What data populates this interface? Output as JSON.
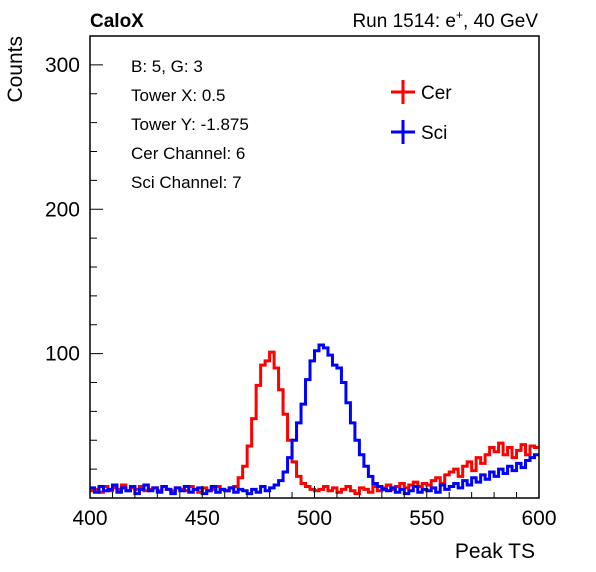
{
  "header": {
    "experiment": "CaloX",
    "run_prefix": "Run 1514: e",
    "run_sup": "+",
    "run_suffix": ", 40 GeV"
  },
  "info_box": {
    "lines": [
      "B: 5, G: 3",
      "Tower X: 0.5",
      "Tower Y: -1.875",
      "Cer Channel: 6",
      "Sci Channel: 7"
    ]
  },
  "chart_data": {
    "type": "line",
    "style": "histogram-step",
    "title": "",
    "xlabel": "Peak TS",
    "ylabel": "Counts",
    "xlim": [
      400,
      600
    ],
    "ylim": [
      0,
      320
    ],
    "x_ticks": [
      400,
      450,
      500,
      550,
      600
    ],
    "y_ticks": [
      100,
      200,
      300
    ],
    "legend_position": "top-right",
    "bin_width": 2,
    "series": [
      {
        "name": "Cer",
        "color": "#ff0000",
        "bin_start": [
          400,
          402,
          404,
          406,
          408,
          410,
          412,
          414,
          416,
          418,
          420,
          422,
          424,
          426,
          428,
          430,
          432,
          434,
          436,
          438,
          440,
          442,
          444,
          446,
          448,
          450,
          452,
          454,
          456,
          458,
          460,
          462,
          464,
          466,
          468,
          470,
          472,
          474,
          476,
          478,
          480,
          482,
          484,
          486,
          488,
          490,
          492,
          494,
          496,
          498,
          500,
          502,
          504,
          506,
          508,
          510,
          512,
          514,
          516,
          518,
          520,
          522,
          524,
          526,
          528,
          530,
          532,
          534,
          536,
          538,
          540,
          542,
          544,
          546,
          548,
          550,
          552,
          554,
          556,
          558,
          560,
          562,
          564,
          566,
          568,
          570,
          572,
          574,
          576,
          578,
          580,
          582,
          584,
          586,
          588,
          590,
          592,
          594,
          596,
          598
        ],
        "values": [
          5,
          6,
          4,
          8,
          5,
          7,
          6,
          9,
          5,
          7,
          6,
          8,
          5,
          6,
          7,
          5,
          8,
          6,
          5,
          7,
          6,
          5,
          8,
          6,
          4,
          7,
          5,
          6,
          8,
          6,
          5,
          7,
          8,
          14,
          22,
          36,
          55,
          78,
          92,
          95,
          101,
          90,
          75,
          58,
          40,
          25,
          15,
          10,
          8,
          6,
          5,
          6,
          8,
          5,
          7,
          4,
          6,
          8,
          5,
          3,
          7,
          6,
          4,
          8,
          5,
          7,
          9,
          6,
          8,
          10,
          7,
          9,
          11,
          8,
          10,
          9,
          12,
          14,
          10,
          16,
          18,
          20,
          15,
          22,
          25,
          19,
          28,
          24,
          30,
          35,
          32,
          38,
          30,
          35,
          28,
          33,
          37,
          30,
          36,
          35
        ]
      },
      {
        "name": "Sci",
        "color": "#0000ff",
        "bin_start": [
          400,
          402,
          404,
          406,
          408,
          410,
          412,
          414,
          416,
          418,
          420,
          422,
          424,
          426,
          428,
          430,
          432,
          434,
          436,
          438,
          440,
          442,
          444,
          446,
          448,
          450,
          452,
          454,
          456,
          458,
          460,
          462,
          464,
          466,
          468,
          470,
          472,
          474,
          476,
          478,
          480,
          482,
          484,
          486,
          488,
          490,
          492,
          494,
          496,
          498,
          500,
          502,
          504,
          506,
          508,
          510,
          512,
          514,
          516,
          518,
          520,
          522,
          524,
          526,
          528,
          530,
          532,
          534,
          536,
          538,
          540,
          542,
          544,
          546,
          548,
          550,
          552,
          554,
          556,
          558,
          560,
          562,
          564,
          566,
          568,
          570,
          572,
          574,
          576,
          578,
          580,
          582,
          584,
          586,
          588,
          590,
          592,
          594,
          596,
          598
        ],
        "values": [
          7,
          4,
          8,
          5,
          6,
          9,
          4,
          7,
          5,
          8,
          3,
          6,
          9,
          5,
          7,
          4,
          8,
          6,
          3,
          7,
          5,
          8,
          4,
          6,
          7,
          3,
          5,
          8,
          4,
          6,
          5,
          7,
          4,
          6,
          5,
          3,
          6,
          4,
          8,
          5,
          7,
          9,
          12,
          18,
          28,
          40,
          52,
          65,
          82,
          95,
          102,
          106,
          104,
          99,
          92,
          90,
          80,
          66,
          52,
          40,
          30,
          22,
          15,
          10,
          8,
          6,
          5,
          7,
          4,
          6,
          3,
          5,
          8,
          4,
          6,
          5,
          7,
          4,
          9,
          6,
          8,
          10,
          7,
          12,
          9,
          14,
          11,
          16,
          13,
          18,
          15,
          20,
          17,
          22,
          19,
          24,
          21,
          26,
          28,
          30
        ]
      }
    ]
  }
}
